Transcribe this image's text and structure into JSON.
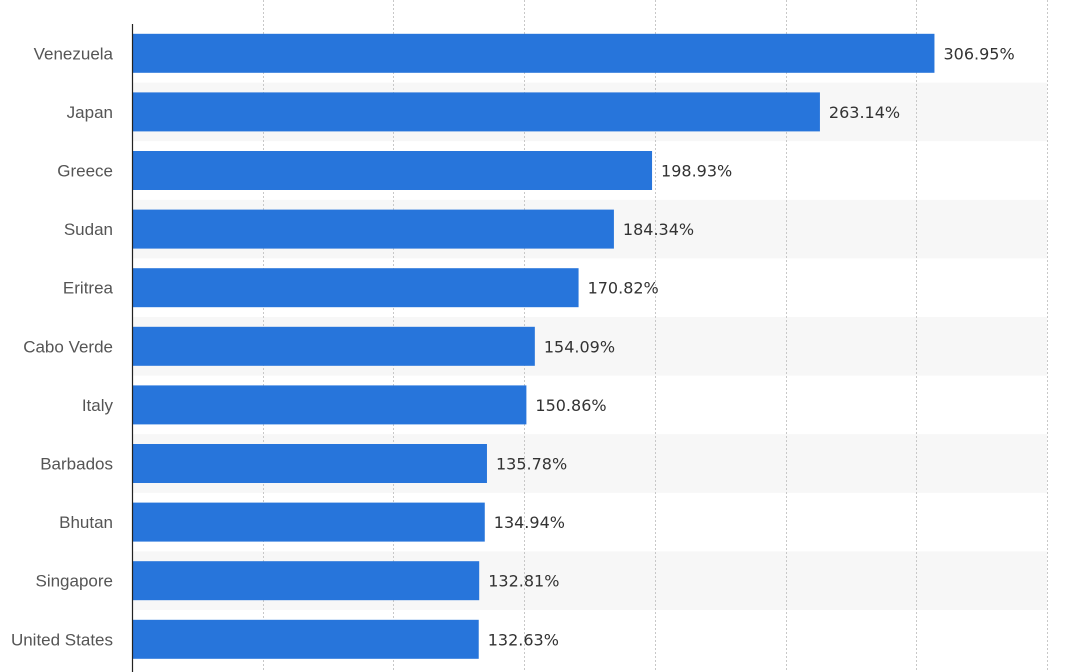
{
  "chart_data": {
    "type": "bar",
    "orientation": "horizontal",
    "categories": [
      "Venezuela",
      "Japan",
      "Greece",
      "Sudan",
      "Eritrea",
      "Cabo Verde",
      "Italy",
      "Barbados",
      "Bhutan",
      "Singapore",
      "United States"
    ],
    "values": [
      306.95,
      263.14,
      198.93,
      184.34,
      170.82,
      154.09,
      150.86,
      135.78,
      134.94,
      132.81,
      132.63
    ],
    "value_labels": [
      "306.95%",
      "263.14%",
      "198.93%",
      "184.34%",
      "170.82%",
      "154.09%",
      "150.86%",
      "135.78%",
      "134.94%",
      "132.81%",
      "132.63%"
    ],
    "xlim": [
      0,
      350
    ],
    "x_gridlines": [
      0,
      50,
      100,
      150,
      200,
      250,
      300,
      350
    ],
    "grid": true,
    "bar_color": "#2775db",
    "alt_row_color": "#f7f7f7",
    "title": "",
    "xlabel": "",
    "ylabel": ""
  }
}
